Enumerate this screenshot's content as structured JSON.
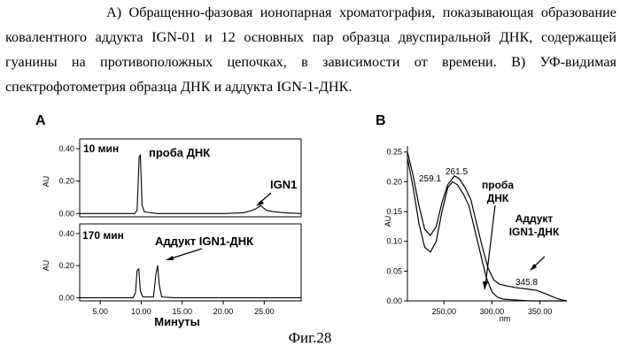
{
  "caption": "А) Обращенно-фазовая ионопарная хроматография, показывающая образование ковалентного аддукта IGN-01 и 12 основных пар образца двуспиральной ДНК, содержащей гуанины на противоположных цепочках, в зависимости от времени. В) УФ-видимая спектрофотометрия образца ДНК и аддукта IGN-1-ДНК.",
  "figure_label": "Фиг.28",
  "panel_a": {
    "letter": "A",
    "top_time_label": "10 мин",
    "top_peak_label": "проба ДНК",
    "top_ign_label": "IGN1",
    "bottom_time_label": "170 мин",
    "bottom_adduct_label": "Аддукт IGN1-ДНК",
    "ylabel": "AU",
    "xlabel": "Минуты",
    "yticks": [
      "0.40",
      "0.20",
      "0.00"
    ],
    "xticks": [
      "5.00",
      "10.00",
      "15.00",
      "20.00",
      "25.00"
    ]
  },
  "panel_b": {
    "letter": "B",
    "ylabel": "AU",
    "xlabel": "nm",
    "yticks": [
      "0.25",
      "0.20",
      "0.15",
      "0.10",
      "0.05",
      "0.00"
    ],
    "xticks": [
      "250.00",
      "300.00",
      "350.00"
    ],
    "peak1_label": "259.1",
    "peak2_label": "261.5",
    "dna_label_line1": "проба",
    "dna_label_line2": "ДНК",
    "adduct_label_line1": "Аддукт",
    "adduct_label_line2": "IGN1-ДНК",
    "shoulder_label": "345.8"
  },
  "chart_data": [
    {
      "type": "line",
      "panel": "A-top",
      "xlabel": "Минуты",
      "ylabel": "AU",
      "xlim": [
        2.5,
        29.5
      ],
      "ylim": [
        -0.02,
        0.46
      ],
      "series": [
        {
          "x": [
            2.5,
            9.2,
            9.5,
            9.75,
            9.9,
            10.1,
            10.4,
            12,
            20,
            22.5,
            23.5,
            24.0,
            24.3,
            24.6,
            24.9,
            25.3,
            26.0,
            27.5,
            29.5
          ],
          "y": [
            0.0,
            0.0,
            0.02,
            0.35,
            0.36,
            0.05,
            0.01,
            0.0,
            0.0,
            0.005,
            0.02,
            0.03,
            0.04,
            0.05,
            0.035,
            0.02,
            0.012,
            0.005,
            0.0
          ]
        }
      ]
    },
    {
      "type": "line",
      "panel": "A-bottom",
      "xlabel": "Минуты",
      "ylabel": "AU",
      "xlim": [
        2.5,
        29.5
      ],
      "ylim": [
        -0.02,
        0.46
      ],
      "series": [
        {
          "x": [
            2.5,
            9.0,
            9.3,
            9.5,
            9.7,
            9.9,
            10.2,
            11.5,
            11.8,
            12.0,
            12.2,
            12.5,
            14.0,
            29.5
          ],
          "y": [
            0.0,
            0.0,
            0.03,
            0.17,
            0.18,
            0.04,
            0.005,
            0.005,
            0.15,
            0.2,
            0.08,
            0.005,
            0.0,
            0.0
          ]
        }
      ]
    },
    {
      "type": "line",
      "panel": "B",
      "xlabel": "nm",
      "ylabel": "AU",
      "xlim": [
        212,
        378
      ],
      "ylim": [
        0,
        0.26
      ],
      "series": [
        {
          "name": "проба ДНК",
          "x": [
            212,
            218,
            224,
            230,
            236,
            242,
            248,
            254,
            259,
            264,
            270,
            276,
            282,
            288,
            294,
            300,
            306,
            312,
            320,
            330,
            340,
            350,
            360,
            370,
            378
          ],
          "y": [
            0.24,
            0.19,
            0.13,
            0.09,
            0.082,
            0.1,
            0.15,
            0.19,
            0.2,
            0.195,
            0.18,
            0.16,
            0.12,
            0.08,
            0.04,
            0.015,
            0.006,
            0.003,
            0.002,
            0.001,
            0.0,
            0.0,
            0.0,
            0.0,
            0.0
          ]
        },
        {
          "name": "Аддукт IGN1-ДНК",
          "x": [
            212,
            218,
            224,
            230,
            236,
            242,
            248,
            254,
            261,
            266,
            272,
            278,
            284,
            290,
            296,
            302,
            308,
            316,
            326,
            336,
            346,
            356,
            366,
            372,
            378
          ],
          "y": [
            0.25,
            0.21,
            0.16,
            0.12,
            0.11,
            0.125,
            0.165,
            0.195,
            0.21,
            0.205,
            0.19,
            0.17,
            0.13,
            0.09,
            0.055,
            0.035,
            0.028,
            0.025,
            0.022,
            0.02,
            0.018,
            0.012,
            0.005,
            0.002,
            0.0
          ]
        }
      ]
    }
  ]
}
